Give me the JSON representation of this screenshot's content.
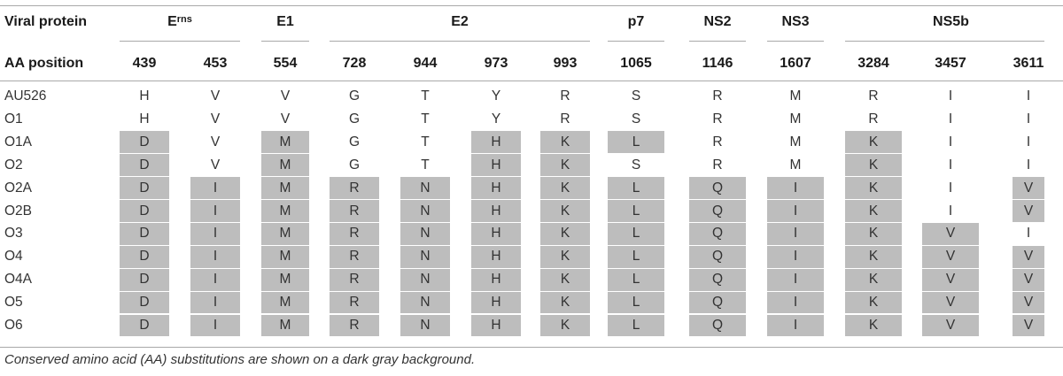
{
  "header": {
    "row_label_1": "Viral protein",
    "row_label_2": "AA position",
    "proteins": [
      {
        "name": "E",
        "sup": "rns",
        "span": [
          0,
          1
        ]
      },
      {
        "name": "E1",
        "sup": "",
        "span": [
          2,
          2
        ]
      },
      {
        "name": "E2",
        "sup": "",
        "span": [
          3,
          6
        ]
      },
      {
        "name": "p7",
        "sup": "",
        "span": [
          7,
          7
        ]
      },
      {
        "name": "NS2",
        "sup": "",
        "span": [
          8,
          8
        ]
      },
      {
        "name": "NS3",
        "sup": "",
        "span": [
          9,
          9
        ]
      },
      {
        "name": "NS5b",
        "sup": "",
        "span": [
          10,
          12
        ]
      }
    ],
    "positions": [
      "439",
      "453",
      "554",
      "728",
      "944",
      "973",
      "993",
      "1065",
      "1146",
      "1607",
      "3284",
      "3457",
      "3611"
    ]
  },
  "rows": [
    {
      "label": "AU526",
      "values": [
        "H",
        "V",
        "V",
        "G",
        "T",
        "Y",
        "R",
        "S",
        "R",
        "M",
        "R",
        "I",
        "I"
      ],
      "shaded": [
        0,
        0,
        0,
        0,
        0,
        0,
        0,
        0,
        0,
        0,
        0,
        0,
        0
      ]
    },
    {
      "label": "O1",
      "values": [
        "H",
        "V",
        "V",
        "G",
        "T",
        "Y",
        "R",
        "S",
        "R",
        "M",
        "R",
        "I",
        "I"
      ],
      "shaded": [
        0,
        0,
        0,
        0,
        0,
        0,
        0,
        0,
        0,
        0,
        0,
        0,
        0
      ]
    },
    {
      "label": "O1A",
      "values": [
        "D",
        "V",
        "M",
        "G",
        "T",
        "H",
        "K",
        "L",
        "R",
        "M",
        "K",
        "I",
        "I"
      ],
      "shaded": [
        1,
        0,
        1,
        0,
        0,
        1,
        1,
        1,
        0,
        0,
        1,
        0,
        0
      ]
    },
    {
      "label": "O2",
      "values": [
        "D",
        "V",
        "M",
        "G",
        "T",
        "H",
        "K",
        "S",
        "R",
        "M",
        "K",
        "I",
        "I"
      ],
      "shaded": [
        1,
        0,
        1,
        0,
        0,
        1,
        1,
        0,
        0,
        0,
        1,
        0,
        0
      ]
    },
    {
      "label": "O2A",
      "values": [
        "D",
        "I",
        "M",
        "R",
        "N",
        "H",
        "K",
        "L",
        "Q",
        "I",
        "K",
        "I",
        "V"
      ],
      "shaded": [
        1,
        1,
        1,
        1,
        1,
        1,
        1,
        1,
        1,
        1,
        1,
        0,
        1
      ]
    },
    {
      "label": "O2B",
      "values": [
        "D",
        "I",
        "M",
        "R",
        "N",
        "H",
        "K",
        "L",
        "Q",
        "I",
        "K",
        "I",
        "V"
      ],
      "shaded": [
        1,
        1,
        1,
        1,
        1,
        1,
        1,
        1,
        1,
        1,
        1,
        0,
        1
      ]
    },
    {
      "label": "O3",
      "values": [
        "D",
        "I",
        "M",
        "R",
        "N",
        "H",
        "K",
        "L",
        "Q",
        "I",
        "K",
        "V",
        "I"
      ],
      "shaded": [
        1,
        1,
        1,
        1,
        1,
        1,
        1,
        1,
        1,
        1,
        1,
        1,
        0
      ]
    },
    {
      "label": "O4",
      "values": [
        "D",
        "I",
        "M",
        "R",
        "N",
        "H",
        "K",
        "L",
        "Q",
        "I",
        "K",
        "V",
        "V"
      ],
      "shaded": [
        1,
        1,
        1,
        1,
        1,
        1,
        1,
        1,
        1,
        1,
        1,
        1,
        1
      ]
    },
    {
      "label": "O4A",
      "values": [
        "D",
        "I",
        "M",
        "R",
        "N",
        "H",
        "K",
        "L",
        "Q",
        "I",
        "K",
        "V",
        "V"
      ],
      "shaded": [
        1,
        1,
        1,
        1,
        1,
        1,
        1,
        1,
        1,
        1,
        1,
        1,
        1
      ]
    },
    {
      "label": "O5",
      "values": [
        "D",
        "I",
        "M",
        "R",
        "N",
        "H",
        "K",
        "L",
        "Q",
        "I",
        "K",
        "V",
        "V"
      ],
      "shaded": [
        1,
        1,
        1,
        1,
        1,
        1,
        1,
        1,
        1,
        1,
        1,
        1,
        1
      ]
    },
    {
      "label": "O6",
      "values": [
        "D",
        "I",
        "M",
        "R",
        "N",
        "H",
        "K",
        "L",
        "Q",
        "I",
        "K",
        "V",
        "V"
      ],
      "shaded": [
        1,
        1,
        1,
        1,
        1,
        1,
        1,
        1,
        1,
        1,
        1,
        1,
        1
      ]
    }
  ],
  "footnote": "Conserved amino acid (AA) substitutions are shown on a dark gray background.",
  "colors": {
    "shade": "#bdbdbd",
    "rule": "#a9a9a9"
  }
}
